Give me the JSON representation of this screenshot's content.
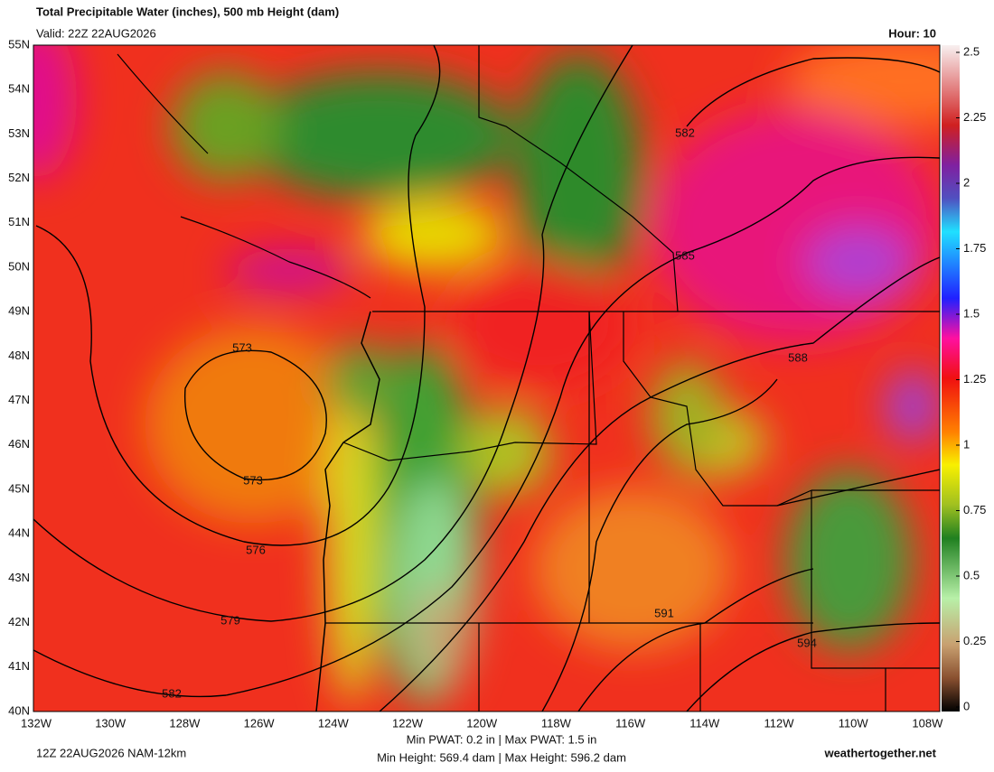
{
  "header": {
    "title": "Total Precipitable Water (inches), 500 mb Height (dam)",
    "valid": "Valid: 22Z 22AUG2026",
    "hour": "Hour: 10"
  },
  "map": {
    "lat_labels": [
      "55N",
      "54N",
      "53N",
      "52N",
      "51N",
      "50N",
      "49N",
      "48N",
      "47N",
      "46N",
      "45N",
      "44N",
      "43N",
      "42N",
      "41N",
      "40N"
    ],
    "lon_labels": [
      "132W",
      "130W",
      "128W",
      "126W",
      "124W",
      "122W",
      "120W",
      "118W",
      "116W",
      "114W",
      "112W",
      "110W",
      "108W"
    ],
    "contour_labels": [
      "573",
      "573",
      "576",
      "579",
      "582",
      "582",
      "585",
      "588",
      "591",
      "594"
    ]
  },
  "colorbar": {
    "ticks": [
      2.5,
      2.25,
      2,
      1.75,
      1.5,
      1.25,
      1,
      0.75,
      0.5,
      0.25,
      0
    ]
  },
  "footer": {
    "run": "12Z 22AUG2026 NAM-12km",
    "pwat": "Min PWAT:   0.2 in | Max PWAT:   1.5 in",
    "height": "Min Height: 569.4 dam | Max Height: 596.2 dam",
    "site": "weathertogether.net"
  }
}
